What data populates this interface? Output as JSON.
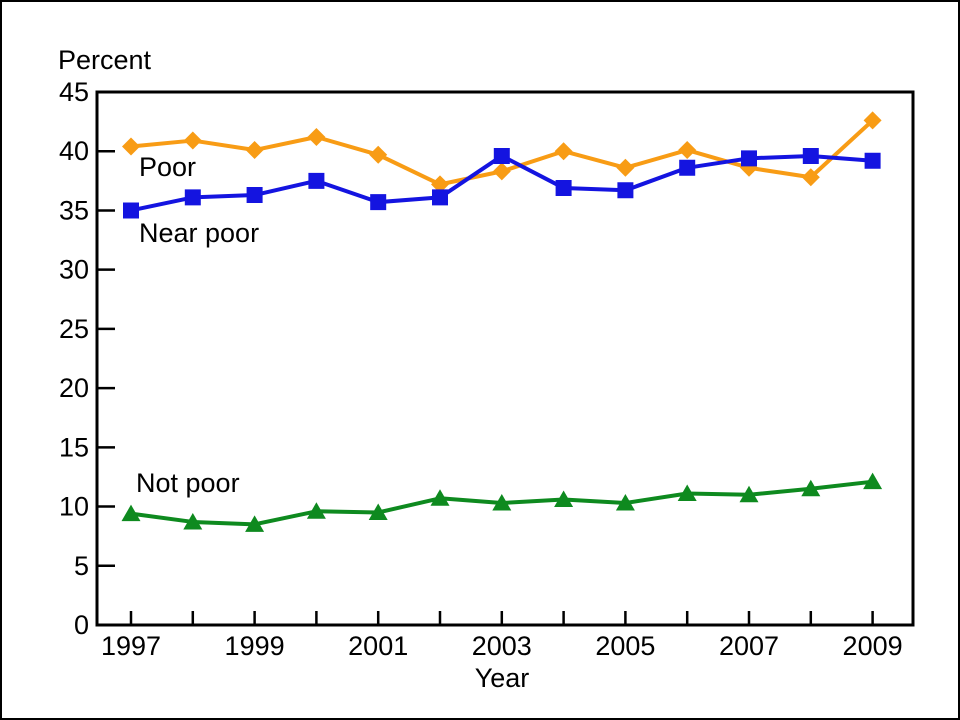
{
  "chart_data": {
    "type": "line",
    "title": "Percent",
    "ylabel": "Percent",
    "xlabel": "Year",
    "grid": false,
    "legend_position": "inline-labels-next-to-lines",
    "ylim": [
      0,
      45
    ],
    "y_ticks": [
      0,
      5,
      10,
      15,
      20,
      25,
      30,
      35,
      40,
      45
    ],
    "x": [
      1997,
      1998,
      1999,
      2000,
      2001,
      2002,
      2003,
      2004,
      2005,
      2006,
      2007,
      2008,
      2009
    ],
    "x_tick_labels": [
      "1997",
      "1999",
      "2001",
      "2003",
      "2005",
      "2007",
      "2009"
    ],
    "series": [
      {
        "name": "Poor",
        "color": "#F89C15",
        "marker": "diamond",
        "values": [
          40.4,
          40.9,
          40.1,
          41.2,
          39.7,
          37.2,
          38.3,
          40.0,
          38.6,
          40.1,
          38.6,
          37.8,
          42.6
        ]
      },
      {
        "name": "Near poor",
        "color": "#1414E0",
        "marker": "square",
        "values": [
          35.0,
          36.1,
          36.3,
          37.5,
          35.7,
          36.1,
          39.6,
          36.9,
          36.7,
          38.6,
          39.4,
          39.6,
          39.2
        ]
      },
      {
        "name": "Not poor",
        "color": "#0E8A1F",
        "marker": "triangle-up",
        "values": [
          9.4,
          8.7,
          8.5,
          9.6,
          9.5,
          10.7,
          10.3,
          10.6,
          10.3,
          11.1,
          11.0,
          11.5,
          12.1
        ]
      }
    ]
  }
}
